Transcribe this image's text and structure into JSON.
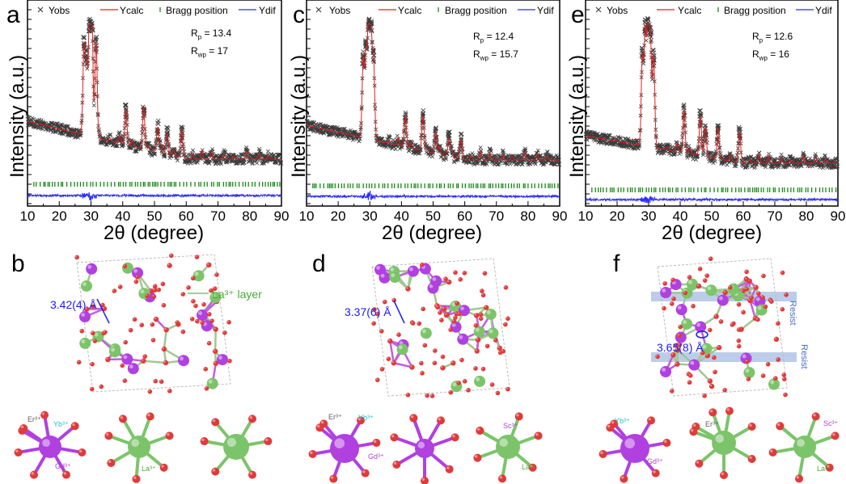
{
  "panels_top": [
    {
      "letter": "a",
      "legend": [
        "Yobs",
        "Ycalc",
        "Bragg position",
        "Ydif"
      ],
      "rp_label": "R",
      "rp_sub": "p",
      "rp_value": "= 13.4",
      "rwp_label": "R",
      "rwp_sub": "wp",
      "rwp_value": "= 17"
    },
    {
      "letter": "c",
      "legend": [
        "Yobs",
        "Ycalc",
        "Bragg position",
        "Ydif"
      ],
      "rp_label": "R",
      "rp_sub": "p",
      "rp_value": "= 12.4",
      "rwp_label": "R",
      "rwp_sub": "wp",
      "rwp_value": "= 15.7"
    },
    {
      "letter": "e",
      "legend": [
        "Yobs",
        "Ycalc",
        "Bragg position",
        "Ydif"
      ],
      "rp_label": "R",
      "rp_sub": "p",
      "rp_value": "= 12.6",
      "rwp_label": "R",
      "rwp_sub": "wp",
      "rwp_value": "= 16"
    }
  ],
  "axis": {
    "ylabel": "Intensity (a.u.)",
    "xlabel": "2θ (degree)",
    "xticks": [
      "10",
      "20",
      "30",
      "40",
      "50",
      "60",
      "70",
      "80",
      "90"
    ]
  },
  "panels_bottom": [
    {
      "letter": "b",
      "distance": "3.42(4) Å",
      "layer_label": "La³⁺ layer",
      "ions": [
        "Er³⁺",
        "Yb³⁺",
        "Gd³⁺",
        "La³⁺"
      ]
    },
    {
      "letter": "d",
      "distance": "3.37(6) Å",
      "ions": [
        "Er³⁺",
        "Yb³⁺",
        "Gd³⁺",
        "Sc³⁺",
        "La³⁺"
      ]
    },
    {
      "letter": "f",
      "distance": "3.65(8) Å",
      "resist": [
        "Resist",
        "Resist"
      ],
      "ions": [
        "Yb³⁺",
        "Gd³⁺",
        "Er³⁺",
        "Sc³⁺",
        "La³⁺"
      ]
    }
  ],
  "colors": {
    "obs": "#3a3a3a",
    "calc": "#e02020",
    "bragg": "#1a8a1a",
    "dif": "#2b2bff",
    "gd_atom": "#b040e0",
    "la_atom": "#80c070",
    "o_atom": "#e03a3a",
    "yb_label": "#20c0d0",
    "er_label": "#606060",
    "resist_band": "#9fb8e0",
    "distance_text": "#1a1aff"
  },
  "chart_data": [
    {
      "type": "scatter",
      "xlabel": "2θ (degree)",
      "ylabel": "Intensity (a.u.)",
      "xlim": [
        10,
        90
      ],
      "series": [
        {
          "name": "Yobs"
        },
        {
          "name": "Ycalc"
        },
        {
          "name": "Bragg position"
        },
        {
          "name": "Ydif"
        }
      ],
      "peaks": [
        [
          27.8,
          0.62
        ],
        [
          28.6,
          0.5
        ],
        [
          29.6,
          1.0
        ],
        [
          30.3,
          0.78
        ],
        [
          31.6,
          0.68
        ],
        [
          41.0,
          0.25
        ],
        [
          46.6,
          0.3
        ],
        [
          51.0,
          0.18
        ],
        [
          54.0,
          0.15
        ],
        [
          58.6,
          0.2
        ]
      ],
      "annotations": [
        "R_p = 13.4",
        "R_wp = 17"
      ]
    },
    {
      "type": "scatter",
      "xlabel": "2θ (degree)",
      "ylabel": "Intensity (a.u.)",
      "xlim": [
        10,
        90
      ],
      "series": [
        {
          "name": "Yobs"
        },
        {
          "name": "Ycalc"
        },
        {
          "name": "Bragg position"
        },
        {
          "name": "Ydif"
        }
      ],
      "peaks": [
        [
          27.9,
          0.55
        ],
        [
          28.8,
          0.6
        ],
        [
          29.7,
          1.0
        ],
        [
          30.4,
          0.7
        ],
        [
          31.2,
          0.55
        ],
        [
          41.2,
          0.22
        ],
        [
          46.8,
          0.25
        ],
        [
          50.8,
          0.15
        ],
        [
          55.0,
          0.13
        ],
        [
          58.8,
          0.14
        ]
      ],
      "annotations": [
        "R_p = 12.4",
        "R_wp = 15.7"
      ]
    },
    {
      "type": "scatter",
      "xlabel": "2θ (degree)",
      "ylabel": "Intensity (a.u.)",
      "xlim": [
        10,
        90
      ],
      "series": [
        {
          "name": "Yobs"
        },
        {
          "name": "Ycalc"
        },
        {
          "name": "Bragg position"
        },
        {
          "name": "Ydif"
        }
      ],
      "peaks": [
        [
          28.0,
          0.62
        ],
        [
          28.9,
          0.8
        ],
        [
          29.8,
          1.0
        ],
        [
          30.6,
          0.72
        ],
        [
          31.6,
          0.65
        ],
        [
          41.2,
          0.3
        ],
        [
          46.4,
          0.28
        ],
        [
          48.0,
          0.18
        ],
        [
          52.0,
          0.16
        ],
        [
          58.8,
          0.22
        ]
      ],
      "annotations": [
        "R_p = 12.6",
        "R_wp = 16"
      ]
    }
  ]
}
